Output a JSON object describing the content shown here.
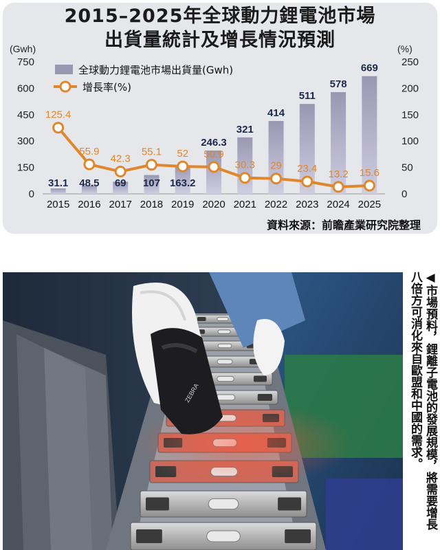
{
  "header": {
    "title_line1": "2015–2025年全球動力鋰電池市場",
    "title_line2": "出貨量統計及增長情況預測"
  },
  "chart_data": {
    "type": "bar",
    "categories": [
      "2015",
      "2016",
      "2017",
      "2018",
      "2019",
      "2020",
      "2021",
      "2022",
      "2023",
      "2024",
      "2025"
    ],
    "series": [
      {
        "name": "全球動力鋰電池市場出貨量(Gwh)",
        "type": "bar",
        "axis": "left",
        "values": [
          31.1,
          48.5,
          69,
          107,
          163.2,
          246.3,
          321,
          414,
          511,
          578,
          669
        ]
      },
      {
        "name": "增長率(%)",
        "type": "line",
        "axis": "right",
        "values": [
          125.4,
          55.9,
          42.3,
          55.1,
          52,
          50.9,
          30.3,
          29,
          23.4,
          13.2,
          15.6
        ]
      }
    ],
    "left_axis": {
      "unit": "(Gwh)",
      "ylim": [
        0,
        750
      ],
      "ticks": [
        "750",
        "600",
        "450",
        "300",
        "150",
        "0"
      ]
    },
    "right_axis": {
      "unit": "(%)",
      "ylim": [
        0,
        250
      ],
      "ticks": [
        "250",
        "200",
        "150",
        "100",
        "50",
        "0"
      ]
    },
    "bar_labels": [
      "31.1",
      "48.5",
      "69",
      "107",
      "163.2",
      "246.3",
      "321",
      "414",
      "511",
      "578",
      "669"
    ],
    "line_labels": [
      "125.4",
      "55.9",
      "42.3",
      "55.1",
      "52",
      "50.9",
      "30.3",
      "29",
      "23.4",
      "13.2",
      "15.6"
    ],
    "legend": {
      "bar": "全球動力鋰電池市場出貨量(Gwh)",
      "line": "增長率(%)",
      "placement": "top-left"
    },
    "grid": false,
    "colors": {
      "bar": "#9a97b3",
      "bar_gradient_end": "#cfcde0",
      "line": "#e0872b",
      "marker_fill": "#ffffff",
      "line_label": "#e0872b",
      "bar_label": "#1b2a4a"
    }
  },
  "source": "資料來源：前瞻產業研究院整理",
  "photo": {
    "scanner_brand": "ZEBRA"
  },
  "caption": {
    "col1": "◀市場預料，鋰離子電池的發展規模，將需要增長",
    "col2": "八倍方可消化來自歐盟和中國的需求。"
  }
}
